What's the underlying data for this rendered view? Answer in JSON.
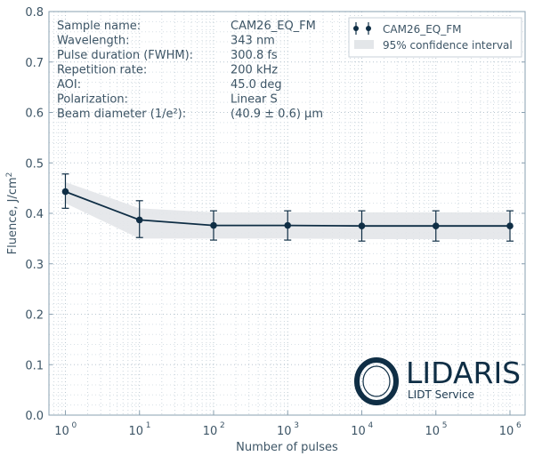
{
  "chart_data": {
    "type": "line",
    "xscale": "log",
    "xlabel": "Number of pulses",
    "ylabel": "Fluence, J/cm²",
    "ylabel_base": "Fluence, J/cm",
    "ylabel_sup": "2",
    "xlim": [
      0.6,
      1600000
    ],
    "ylim": [
      0,
      0.8
    ],
    "grid": true,
    "x_ticks": [
      {
        "base": "10",
        "exp": "0",
        "v": 1
      },
      {
        "base": "10",
        "exp": "1",
        "v": 10
      },
      {
        "base": "10",
        "exp": "2",
        "v": 100
      },
      {
        "base": "10",
        "exp": "3",
        "v": 1000
      },
      {
        "base": "10",
        "exp": "4",
        "v": 10000
      },
      {
        "base": "10",
        "exp": "5",
        "v": 100000
      },
      {
        "base": "10",
        "exp": "6",
        "v": 1000000
      }
    ],
    "y_ticks": [
      "0.0",
      "0.1",
      "0.2",
      "0.3",
      "0.4",
      "0.5",
      "0.6",
      "0.7",
      "0.8"
    ],
    "series": [
      {
        "name": "CAM26_EQ_FM",
        "x": [
          1,
          10,
          100,
          1000,
          10000,
          100000,
          1000000
        ],
        "y": [
          0.443,
          0.387,
          0.376,
          0.376,
          0.375,
          0.375,
          0.375
        ],
        "err_low": [
          0.41,
          0.352,
          0.347,
          0.347,
          0.345,
          0.345,
          0.345
        ],
        "err_high": [
          0.478,
          0.425,
          0.405,
          0.405,
          0.405,
          0.405,
          0.405
        ],
        "color": "#0f2e45"
      }
    ],
    "confidence_band": {
      "name": "95% confidence interval",
      "x": [
        1,
        10,
        100,
        1000,
        10000,
        100000,
        1000000
      ],
      "low": [
        0.42,
        0.35,
        0.35,
        0.35,
        0.349,
        0.349,
        0.349
      ],
      "high": [
        0.462,
        0.41,
        0.402,
        0.402,
        0.402,
        0.402,
        0.402
      ],
      "color": "#e3e6e9"
    },
    "legend": {
      "placement": "top-right",
      "entries": [
        "CAM26_EQ_FM",
        "95% confidence interval"
      ]
    },
    "info": [
      {
        "label": "Sample name:",
        "value": "CAM26_EQ_FM"
      },
      {
        "label": "Wavelength:",
        "value": "343 nm"
      },
      {
        "label": "Pulse duration (FWHM):",
        "value": "300.8 fs"
      },
      {
        "label": "Repetition rate:",
        "value": "200 kHz"
      },
      {
        "label": "AOI:",
        "value": "45.0 deg"
      },
      {
        "label": "Polarization:",
        "value": "Linear S"
      },
      {
        "label": "Beam diameter (1/e²):",
        "value": "(40.9 ± 0.6) µm"
      }
    ],
    "logo": {
      "name": "LIDARIS",
      "tagline": "LIDT Service"
    }
  }
}
